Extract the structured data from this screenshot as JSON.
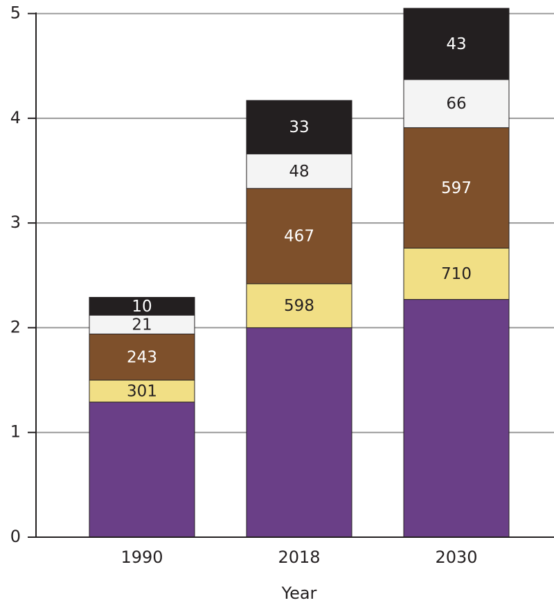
{
  "chart_data": {
    "type": "stacked_bar",
    "x_label": "Year",
    "categories": [
      "1990",
      "2018",
      "2030"
    ],
    "series": [
      {
        "color": "#6a3f87",
        "values": [
          1.29,
          2.0,
          2.27
        ]
      },
      {
        "color": "#f1df85",
        "label_color": "#231f20",
        "values": [
          0.21,
          0.42,
          0.49
        ],
        "labels": [
          301,
          598,
          710
        ]
      },
      {
        "color": "#7e502b",
        "label_color": "#ffffff",
        "values": [
          0.44,
          0.91,
          1.15
        ],
        "labels": [
          243,
          467,
          597
        ]
      },
      {
        "color": "#f4f4f4",
        "label_color": "#231f20",
        "values": [
          0.18,
          0.33,
          0.46
        ],
        "labels": [
          21,
          48,
          66
        ]
      },
      {
        "color": "#231f20",
        "label_color": "#ffffff",
        "values": [
          0.17,
          0.51,
          0.68
        ],
        "labels": [
          10,
          33,
          43
        ]
      }
    ],
    "ylim": [
      0,
      5.05
    ],
    "yticks": [
      0,
      1,
      2,
      3,
      4,
      5
    ],
    "grid": true
  }
}
